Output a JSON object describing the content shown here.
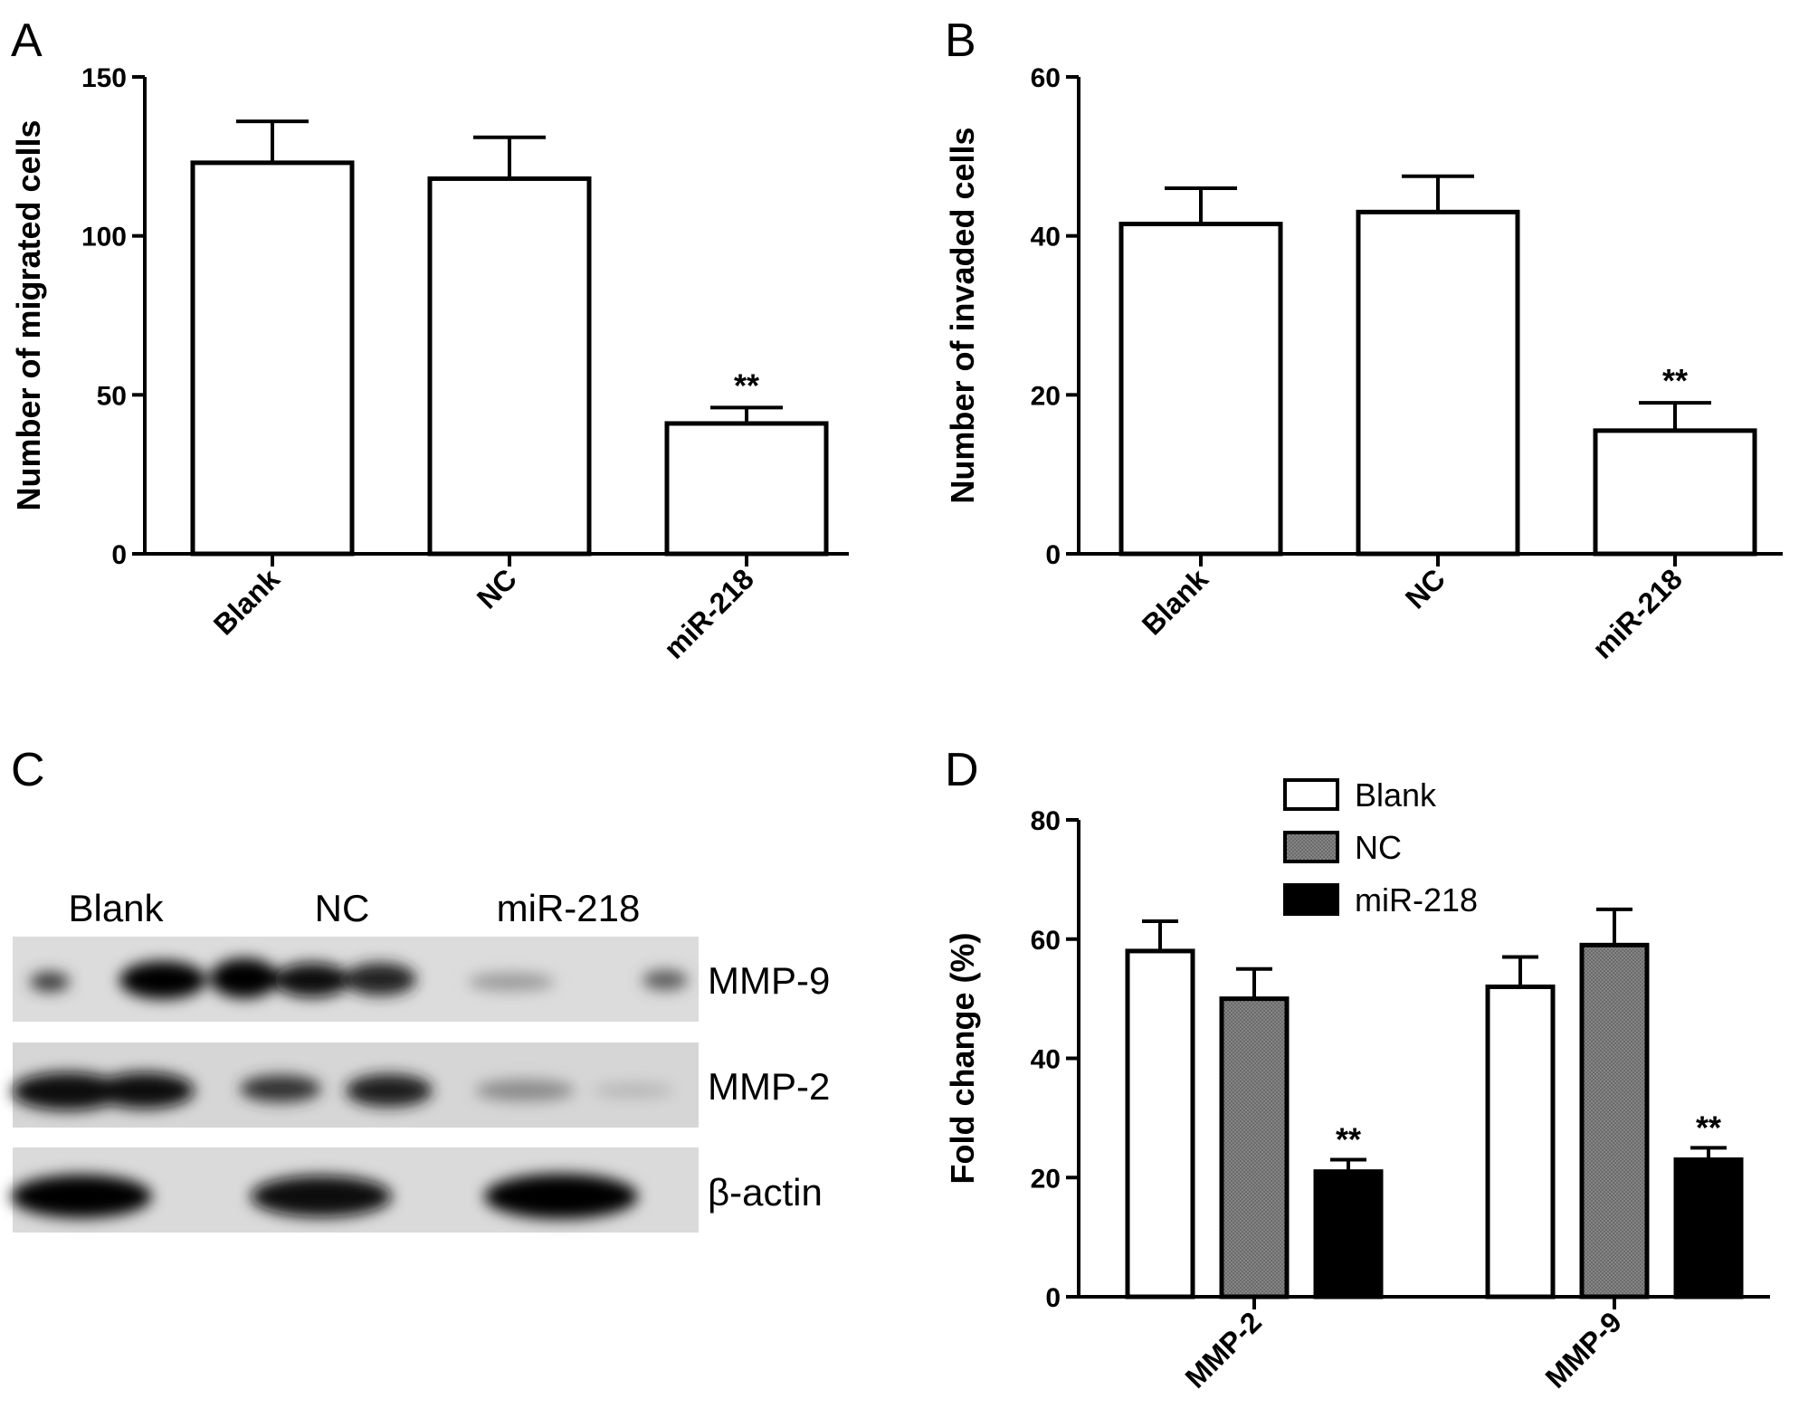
{
  "panels": {
    "A": "A",
    "B": "B",
    "C": "C",
    "D": "D"
  },
  "blot": {
    "lanes": [
      "Blank",
      "NC",
      "miR-218"
    ],
    "proteins": [
      "MMP-9",
      "MMP-2",
      "β-actin"
    ]
  },
  "chart_data": [
    {
      "type": "bar",
      "panel": "A",
      "ylabel": "Number of  migrated cells",
      "xlabel": "",
      "categories": [
        "Blank",
        "NC",
        "miR-218"
      ],
      "values": [
        123,
        118,
        41
      ],
      "errors": [
        13,
        13,
        5
      ],
      "significance": [
        "",
        "",
        "**"
      ],
      "ylim": [
        0,
        150
      ],
      "yticks": [
        "0",
        "50",
        "100",
        "150"
      ]
    },
    {
      "type": "bar",
      "panel": "B",
      "ylabel": "Number of invaded cells",
      "xlabel": "",
      "categories": [
        "Blank",
        "NC",
        "miR-218"
      ],
      "values": [
        41.5,
        43,
        15.5
      ],
      "errors": [
        4.5,
        4.5,
        3.5
      ],
      "significance": [
        "",
        "",
        "**"
      ],
      "ylim": [
        0,
        60
      ],
      "yticks": [
        "0",
        "20",
        "40",
        "60"
      ]
    },
    {
      "type": "bar",
      "panel": "D",
      "ylabel": "Fold change (%)",
      "xlabel": "",
      "categories": [
        "MMP-2",
        "MMP-9"
      ],
      "series": [
        {
          "name": "Blank",
          "values": [
            58,
            52
          ],
          "errors": [
            5,
            5
          ],
          "fill": "#ffffff"
        },
        {
          "name": "NC",
          "values": [
            50,
            59
          ],
          "errors": [
            5,
            6
          ],
          "fill": "#7a7a7a"
        },
        {
          "name": "miR-218",
          "values": [
            21,
            23
          ],
          "errors": [
            2,
            2
          ],
          "fill": "#000000",
          "significance": [
            "**",
            "**"
          ]
        }
      ],
      "ylim": [
        0,
        80
      ],
      "yticks": [
        "0",
        "20",
        "40",
        "60",
        "80"
      ],
      "legend": "top-left"
    }
  ]
}
